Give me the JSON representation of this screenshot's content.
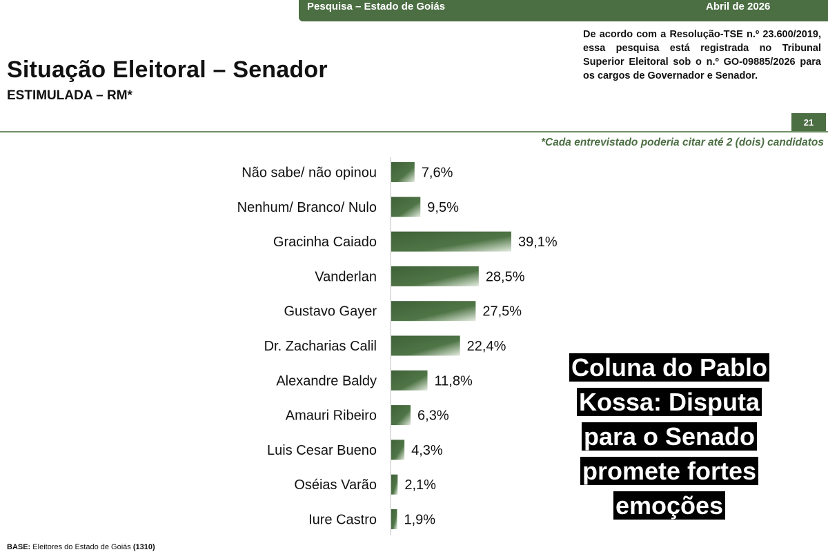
{
  "header": {
    "survey_label": "Pesquisa – Estado de Goiás",
    "date_label": "Abril de 2026",
    "title": "Situação Eleitoral – Senador",
    "subtitle": "ESTIMULADA – RM*",
    "legal_note": "De acordo com a Resolução-TSE n.º 23.600/2019, essa pesquisa está registrada no Tribunal Superior Eleitoral sob o n.º GO-09885/2026 para os cargos de Governador e Senador.",
    "page_number": "21",
    "footnote": "*Cada entrevistado poderia citar até 2 (dois) candidatos"
  },
  "overlay": {
    "headline": "Coluna do Pablo Kossa: Disputa para o Senado promete fortes emoções"
  },
  "footer": {
    "base_label": "BASE:",
    "base_text": "Eleitores do Estado de Goiás",
    "base_count": "(1310)"
  },
  "colors": {
    "accent": "#4b6e43",
    "bar_dark": "#3f6138",
    "bar_light": "#e4ece0"
  },
  "chart_data": {
    "type": "bar",
    "orientation": "horizontal",
    "title": "Situação Eleitoral – Senador",
    "subtitle": "ESTIMULADA – RM*",
    "categories": [
      "Não sabe/ não opinou",
      "Nenhum/ Branco/ Nulo",
      "Gracinha Caiado",
      "Vanderlan",
      "Gustavo Gayer",
      "Dr. Zacharias Calil",
      "Alexandre Baldy",
      "Amauri Ribeiro",
      "Luis Cesar Bueno",
      "Oséias Varão",
      "Iure Castro"
    ],
    "values": [
      7.6,
      9.5,
      39.1,
      28.5,
      27.5,
      22.4,
      11.8,
      6.3,
      4.3,
      2.1,
      1.9
    ],
    "value_labels": [
      "7,6%",
      "9,5%",
      "39,1%",
      "28,5%",
      "27,5%",
      "22,4%",
      "11,8%",
      "6,3%",
      "4,3%",
      "2,1%",
      "1,9%"
    ],
    "xlabel": "",
    "ylabel": "",
    "xlim": [
      0,
      100
    ],
    "grid": false,
    "legend": "none"
  }
}
